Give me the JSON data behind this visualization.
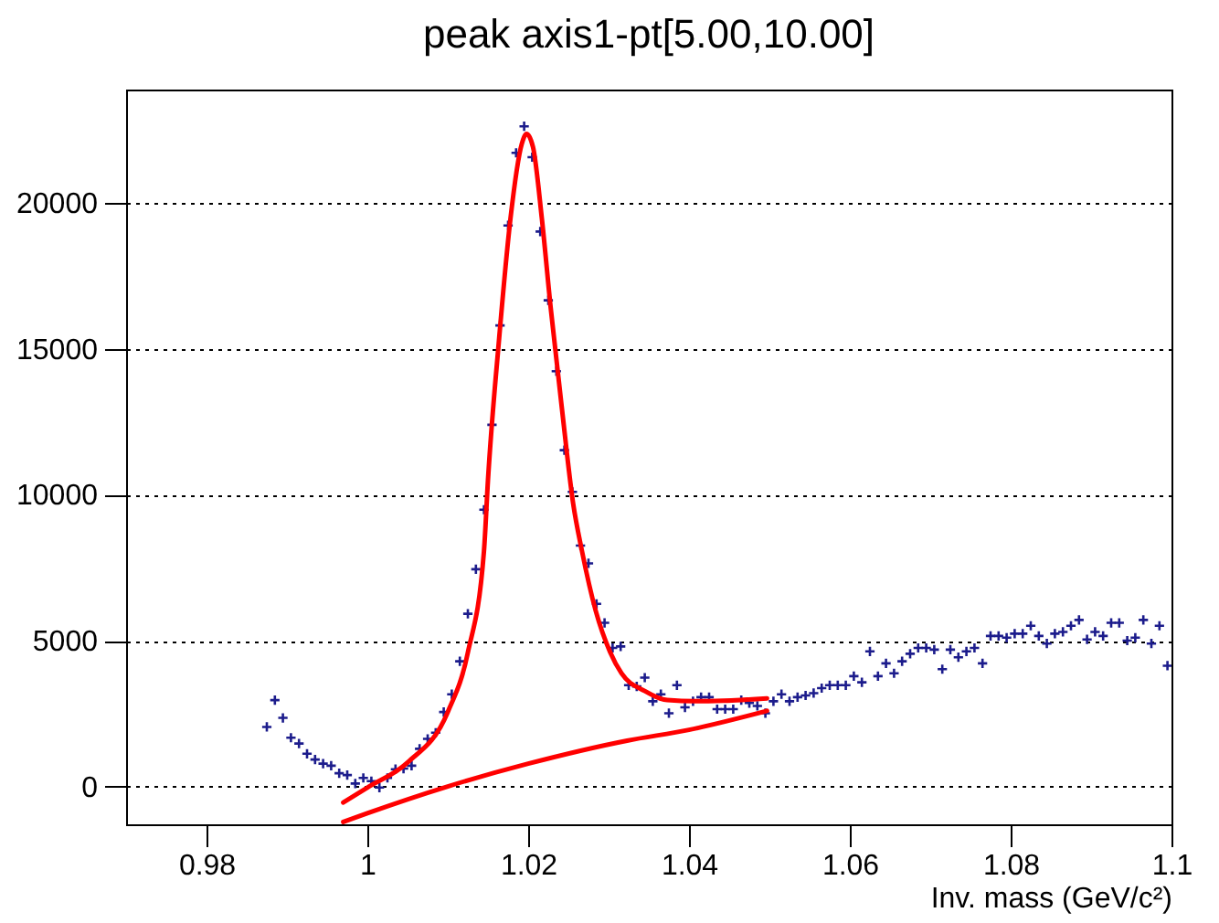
{
  "chart_data": {
    "type": "scatter",
    "title": "peak axis1-pt[5.00,10.00]",
    "xlabel": "Inv. mass (GeV/c²)",
    "xlim": [
      0.97,
      1.1
    ],
    "xticks": [
      0.98,
      1,
      1.02,
      1.04,
      1.06,
      1.08,
      1.1
    ],
    "ylim": [
      -1300,
      23900
    ],
    "yticks": [
      0,
      5000,
      10000,
      15000,
      20000
    ],
    "grid": "y",
    "series": [
      {
        "color": "#1c1c8c",
        "marker": "cross",
        "x": [
          0.9875,
          0.9885,
          0.9895,
          0.9905,
          0.9915,
          0.9925,
          0.9935,
          0.9945,
          0.9955,
          0.9965,
          0.9975,
          0.9985,
          0.9995,
          1.0005,
          1.0015,
          1.0025,
          1.0035,
          1.0045,
          1.0055,
          1.0065,
          1.0075,
          1.0085,
          1.0095,
          1.0105,
          1.0115,
          1.0125,
          1.0135,
          1.0145,
          1.0155,
          1.0165,
          1.0175,
          1.0185,
          1.0195,
          1.0205,
          1.0215,
          1.0225,
          1.0235,
          1.0245,
          1.0255,
          1.0265,
          1.0275,
          1.0285,
          1.0295,
          1.0305,
          1.0315,
          1.0325,
          1.0335,
          1.0345,
          1.0355,
          1.0365,
          1.0375,
          1.0385,
          1.0395,
          1.0405,
          1.0415,
          1.0425,
          1.0435,
          1.0445,
          1.0455,
          1.0465,
          1.0475,
          1.0485,
          1.0495,
          1.0505,
          1.0515,
          1.0525,
          1.0535,
          1.0545,
          1.0555,
          1.0565,
          1.0575,
          1.0585,
          1.0595,
          1.0605,
          1.0615,
          1.0625,
          1.0635,
          1.0645,
          1.0655,
          1.0665,
          1.0675,
          1.0685,
          1.0695,
          1.0705,
          1.0715,
          1.0725,
          1.0735,
          1.0745,
          1.0755,
          1.0765,
          1.0775,
          1.0785,
          1.0795,
          1.0805,
          1.0815,
          1.0825,
          1.0835,
          1.0845,
          1.0855,
          1.0865,
          1.0875,
          1.0885,
          1.0895,
          1.0905,
          1.0915,
          1.0925,
          1.0935,
          1.0945,
          1.0955,
          1.0965,
          1.0975,
          1.0985,
          1.0995
        ],
        "values": [
          2040,
          2960,
          2350,
          1670,
          1470,
          1120,
          920,
          780,
          710,
          450,
          390,
          100,
          290,
          180,
          -40,
          290,
          590,
          610,
          710,
          1290,
          1630,
          1840,
          2550,
          3160,
          4290,
          5920,
          7450,
          9490,
          12400,
          15810,
          19240,
          21730,
          22640,
          21580,
          19030,
          16670,
          14240,
          11530,
          10100,
          8260,
          7650,
          6260,
          5610,
          4750,
          4800,
          3470,
          3430,
          3730,
          2920,
          3160,
          2510,
          3470,
          2710,
          2920,
          3060,
          3060,
          2650,
          2650,
          2650,
          2960,
          2860,
          2760,
          2510,
          2920,
          3160,
          2920,
          3060,
          3120,
          3200,
          3370,
          3470,
          3470,
          3470,
          3780,
          3570,
          4630,
          3780,
          4220,
          3880,
          4290,
          4550,
          4750,
          4750,
          4690,
          4020,
          4690,
          4430,
          4630,
          4750,
          4220,
          5160,
          5160,
          5100,
          5240,
          5240,
          5510,
          5160,
          4900,
          5240,
          5300,
          5510,
          5710,
          5040,
          5300,
          5160,
          5610,
          5610,
          5000,
          5100,
          5710,
          4900,
          5510,
          4140
        ]
      },
      {
        "type": "line",
        "color": "#ff0000",
        "x": [
          0.997,
          1.0,
          1.005,
          1.01,
          1.0125,
          1.0145,
          1.015,
          1.0164,
          1.0178,
          1.0192,
          1.0198,
          1.0206,
          1.0217,
          1.0228,
          1.0242,
          1.0256,
          1.0267,
          1.0284,
          1.0302,
          1.0316,
          1.0345,
          1.0373,
          1.0408,
          1.0443,
          1.0497
        ],
        "values": [
          -550,
          -40,
          820,
          2550,
          4590,
          8060,
          10500,
          15400,
          19480,
          22030,
          22380,
          21930,
          19480,
          16420,
          12950,
          9690,
          8060,
          6020,
          4600,
          3880,
          3270,
          2960,
          2920,
          2940,
          3020
        ]
      },
      {
        "type": "line",
        "color": "#ff0000",
        "x": [
          0.997,
          1.0,
          1.01,
          1.02,
          1.0323,
          1.04,
          1.0497
        ],
        "values": [
          -1220,
          -920,
          0,
          780,
          1570,
          1940,
          2590
        ]
      }
    ]
  }
}
